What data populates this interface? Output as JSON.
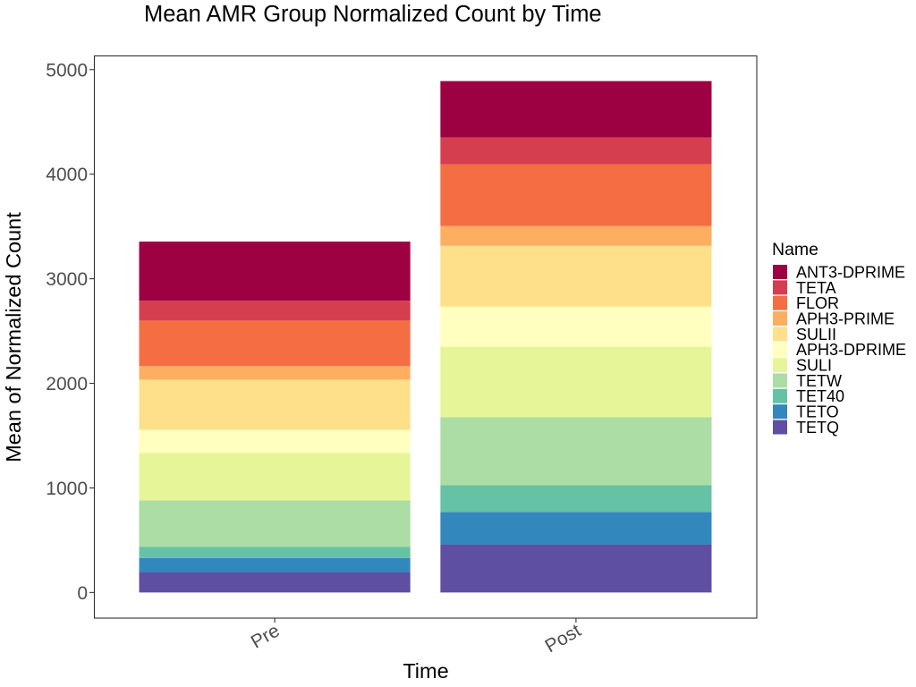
{
  "chart_data": {
    "type": "bar",
    "stacked": true,
    "title": "Mean AMR Group Normalized Count by Time",
    "xlabel": "Time",
    "ylabel": "Mean of Normalized Count",
    "categories": [
      "Pre",
      "Post"
    ],
    "ylim": [
      -245,
      5135
    ],
    "yticks": [
      0,
      1000,
      2000,
      3000,
      4000,
      5000
    ],
    "grid": false,
    "legend_title": "Name",
    "legend_position": "right",
    "series": [
      {
        "name": "ANT3-DPRIME",
        "color": "#9E0142",
        "values": [
          565,
          540
        ]
      },
      {
        "name": "TETA",
        "color": "#D53E4F",
        "values": [
          190,
          255
        ]
      },
      {
        "name": "FLOR",
        "color": "#F46D43",
        "values": [
          435,
          590
        ]
      },
      {
        "name": "APH3-PRIME",
        "color": "#FDAE61",
        "values": [
          130,
          190
        ]
      },
      {
        "name": "SULII",
        "color": "#FEE08B",
        "values": [
          480,
          580
        ]
      },
      {
        "name": "APH3-DPRIME",
        "color": "#FFFFBF",
        "values": [
          220,
          385
        ]
      },
      {
        "name": "SULI",
        "color": "#E6F598",
        "values": [
          455,
          675
        ]
      },
      {
        "name": "TETW",
        "color": "#ABDDA4",
        "values": [
          445,
          650
        ]
      },
      {
        "name": "TET40",
        "color": "#66C2A5",
        "values": [
          105,
          255
        ]
      },
      {
        "name": "TETO",
        "color": "#3288BD",
        "values": [
          135,
          310
        ]
      },
      {
        "name": "TETQ",
        "color": "#5E4FA2",
        "values": [
          195,
          460
        ]
      }
    ]
  }
}
